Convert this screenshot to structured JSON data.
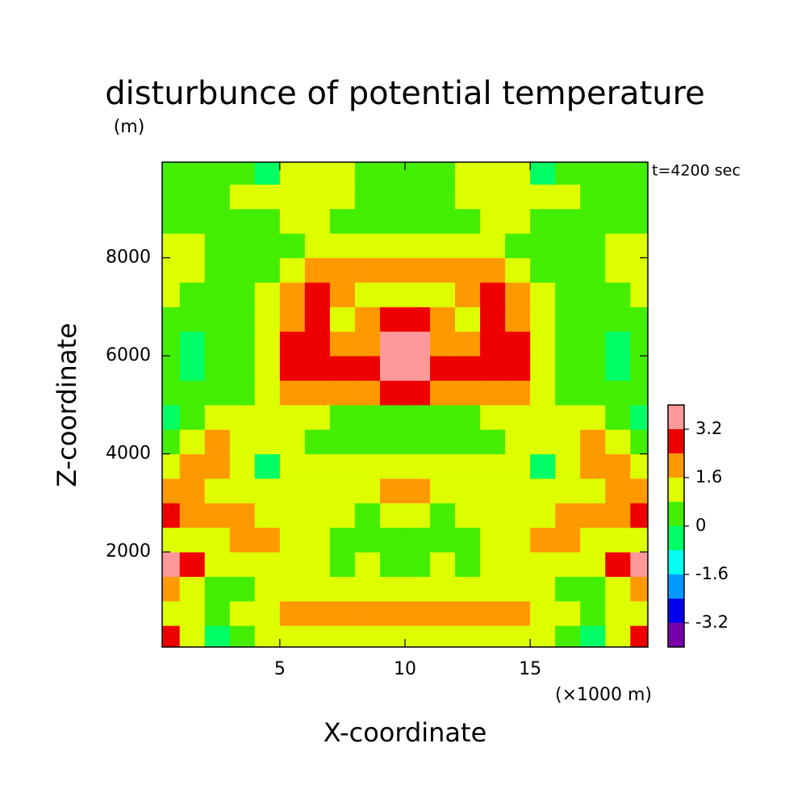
{
  "chart_data": {
    "type": "heatmap",
    "title": "disturbunce of potential temperature",
    "y_unit": "(m)",
    "x_unit": "(×1000 m)",
    "xlabel": "X-coordinate",
    "ylabel": "Z-coordinate",
    "annotation": "t=4200 sec",
    "xlim": [
      0.3,
      19.7
    ],
    "ylim": [
      60,
      9950
    ],
    "xticks": [
      5,
      10,
      15
    ],
    "yticks": [
      2000,
      4000,
      6000,
      8000
    ],
    "x": [
      0.5,
      1.5,
      2.5,
      3.5,
      4.5,
      5.5,
      6.5,
      7.5,
      8.5,
      9.5,
      10.5,
      11.5,
      12.5,
      13.5,
      14.5,
      15.5,
      16.5,
      17.5,
      18.5,
      19.5
    ],
    "y": [
      250,
      750,
      1250,
      1750,
      2250,
      2750,
      3250,
      3750,
      4250,
      4750,
      5250,
      5750,
      6250,
      6750,
      7250,
      7750,
      8250,
      8750,
      9250,
      9750
    ],
    "z": [
      [
        2.8,
        1.2,
        -0.4,
        0.4,
        1.2,
        1.2,
        1.2,
        1.2,
        1.2,
        1.2,
        1.2,
        1.2,
        1.2,
        1.2,
        1.2,
        1.2,
        0.4,
        -0.4,
        1.2,
        2.8
      ],
      [
        1.2,
        1.2,
        0.4,
        1.2,
        1.2,
        2.0,
        2.0,
        2.0,
        2.0,
        2.0,
        2.0,
        2.0,
        2.0,
        2.0,
        2.0,
        1.2,
        1.2,
        0.4,
        1.2,
        1.2
      ],
      [
        2.0,
        1.2,
        0.4,
        0.4,
        1.2,
        1.2,
        1.2,
        1.2,
        1.2,
        1.2,
        1.2,
        1.2,
        1.2,
        1.2,
        1.2,
        1.2,
        0.4,
        0.4,
        1.2,
        2.0
      ],
      [
        3.6,
        2.8,
        1.2,
        1.2,
        1.2,
        1.2,
        1.2,
        0.4,
        1.2,
        0.4,
        0.4,
        1.2,
        0.4,
        1.2,
        1.2,
        1.2,
        1.2,
        1.2,
        2.8,
        3.6
      ],
      [
        1.2,
        1.2,
        1.2,
        2.0,
        2.0,
        1.2,
        1.2,
        0.4,
        0.4,
        0.4,
        0.4,
        0.4,
        0.4,
        1.2,
        1.2,
        2.0,
        2.0,
        1.2,
        1.2,
        1.2
      ],
      [
        2.8,
        2.0,
        2.0,
        2.0,
        1.2,
        1.2,
        1.2,
        1.2,
        0.4,
        1.2,
        1.2,
        0.4,
        1.2,
        1.2,
        1.2,
        1.2,
        2.0,
        2.0,
        2.0,
        2.8
      ],
      [
        2.0,
        2.0,
        1.2,
        1.2,
        1.2,
        1.2,
        1.2,
        1.2,
        1.2,
        2.0,
        2.0,
        1.2,
        1.2,
        1.2,
        1.2,
        1.2,
        1.2,
        1.2,
        2.0,
        2.0
      ],
      [
        1.2,
        2.0,
        2.0,
        1.2,
        -0.4,
        1.2,
        1.2,
        1.2,
        1.2,
        1.2,
        1.2,
        1.2,
        1.2,
        1.2,
        1.2,
        -0.4,
        1.2,
        2.0,
        2.0,
        1.2
      ],
      [
        0.4,
        1.2,
        2.0,
        1.2,
        1.2,
        1.2,
        0.4,
        0.4,
        0.4,
        0.4,
        0.4,
        0.4,
        0.4,
        0.4,
        1.2,
        1.2,
        1.2,
        2.0,
        1.2,
        0.4
      ],
      [
        -0.4,
        0.4,
        1.2,
        1.2,
        1.2,
        1.2,
        1.2,
        0.4,
        0.4,
        0.4,
        0.4,
        0.4,
        0.4,
        1.2,
        1.2,
        1.2,
        1.2,
        1.2,
        0.4,
        -0.4
      ],
      [
        0.4,
        0.4,
        0.4,
        0.4,
        1.2,
        2.0,
        2.0,
        2.0,
        2.0,
        2.8,
        2.8,
        2.0,
        2.0,
        2.0,
        2.0,
        1.2,
        0.4,
        0.4,
        0.4,
        0.4
      ],
      [
        0.4,
        -0.4,
        0.4,
        0.4,
        1.2,
        2.8,
        2.8,
        2.8,
        2.8,
        3.6,
        3.6,
        2.8,
        2.8,
        2.8,
        2.8,
        1.2,
        0.4,
        0.4,
        -0.4,
        0.4
      ],
      [
        0.4,
        -0.4,
        0.4,
        0.4,
        1.2,
        2.8,
        2.8,
        2.0,
        2.0,
        3.6,
        3.6,
        2.0,
        2.0,
        2.8,
        2.8,
        1.2,
        0.4,
        0.4,
        -0.4,
        0.4
      ],
      [
        0.4,
        0.4,
        0.4,
        0.4,
        1.2,
        2.0,
        2.8,
        1.2,
        2.0,
        2.8,
        2.8,
        2.0,
        1.2,
        2.8,
        2.0,
        1.2,
        0.4,
        0.4,
        0.4,
        0.4
      ],
      [
        1.2,
        0.4,
        0.4,
        0.4,
        1.2,
        2.0,
        2.8,
        2.0,
        1.2,
        1.2,
        1.2,
        1.2,
        2.0,
        2.8,
        2.0,
        1.2,
        0.4,
        0.4,
        0.4,
        1.2
      ],
      [
        1.2,
        1.2,
        0.4,
        0.4,
        0.4,
        1.2,
        2.0,
        2.0,
        2.0,
        2.0,
        2.0,
        2.0,
        2.0,
        2.0,
        1.2,
        0.4,
        0.4,
        0.4,
        1.2,
        1.2
      ],
      [
        1.2,
        1.2,
        0.4,
        0.4,
        0.4,
        0.4,
        1.2,
        1.2,
        1.2,
        1.2,
        1.2,
        1.2,
        1.2,
        1.2,
        0.4,
        0.4,
        0.4,
        0.4,
        1.2,
        1.2
      ],
      [
        0.4,
        0.4,
        0.4,
        0.4,
        0.4,
        1.2,
        1.2,
        0.4,
        0.4,
        0.4,
        0.4,
        0.4,
        0.4,
        1.2,
        1.2,
        0.4,
        0.4,
        0.4,
        0.4,
        0.4
      ],
      [
        0.4,
        0.4,
        0.4,
        1.2,
        1.2,
        1.2,
        1.2,
        1.2,
        0.4,
        0.4,
        0.4,
        0.4,
        1.2,
        1.2,
        1.2,
        1.2,
        1.2,
        0.4,
        0.4,
        0.4
      ],
      [
        0.4,
        0.4,
        0.4,
        0.4,
        -0.4,
        1.2,
        1.2,
        1.2,
        0.4,
        0.4,
        0.4,
        0.4,
        1.2,
        1.2,
        1.2,
        -0.4,
        0.4,
        0.4,
        0.4,
        0.4
      ]
    ],
    "levels": [
      -4,
      -3.2,
      -2.4,
      -1.6,
      -0.8,
      0,
      0.8,
      1.6,
      2.4,
      3.2,
      4
    ],
    "colors": [
      "#7700aa",
      "#0000ee",
      "#0099ff",
      "#00ffee",
      "#00ff66",
      "#44ee00",
      "#ddff00",
      "#ff9900",
      "#ee0000",
      "#ff9999"
    ],
    "colorbar_ticks": [
      -3.2,
      -1.6,
      0,
      1.6,
      3.2
    ]
  }
}
